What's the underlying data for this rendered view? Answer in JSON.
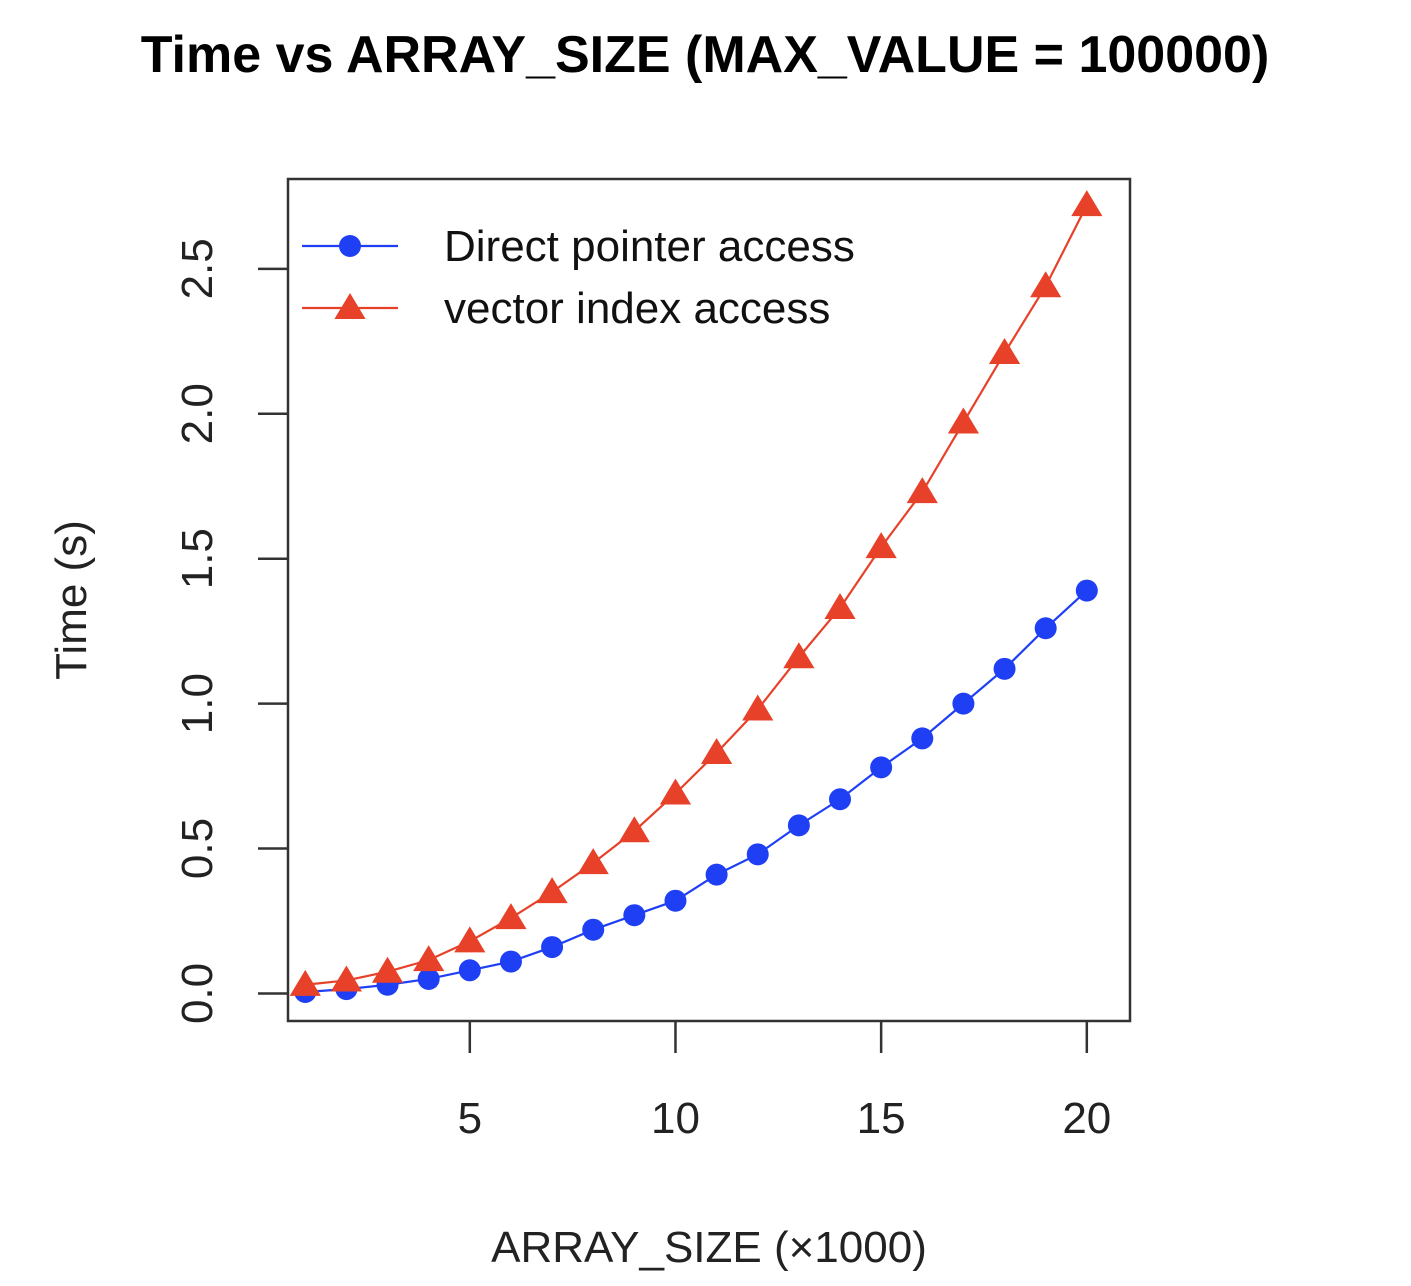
{
  "chart_data": {
    "type": "line",
    "title": "Time vs ARRAY_SIZE (MAX_VALUE = 100000)",
    "xlabel": "ARRAY_SIZE (×1000)",
    "ylabel": "Time (s)",
    "xlim": [
      0.58,
      21.05
    ],
    "ylim": [
      -0.095,
      2.81
    ],
    "x_ticks": [
      5,
      10,
      15,
      20
    ],
    "y_ticks": [
      0.0,
      0.5,
      1.0,
      1.5,
      2.0,
      2.5
    ],
    "x_tick_labels": [
      "5",
      "10",
      "15",
      "20"
    ],
    "y_tick_labels": [
      "0.0",
      "0.5",
      "1.0",
      "1.5",
      "2.0",
      "2.5"
    ],
    "grid": false,
    "legend_position": "top-left",
    "x": [
      1,
      2,
      3,
      4,
      5,
      6,
      7,
      8,
      9,
      10,
      11,
      12,
      13,
      14,
      15,
      16,
      17,
      18,
      19,
      20
    ],
    "series": [
      {
        "name": "Direct pointer access",
        "color": "#1f3ff5",
        "marker": "circle",
        "values": [
          0.005,
          0.015,
          0.03,
          0.05,
          0.08,
          0.11,
          0.16,
          0.22,
          0.27,
          0.32,
          0.41,
          0.48,
          0.58,
          0.67,
          0.78,
          0.88,
          1.0,
          1.12,
          1.26,
          1.39
        ]
      },
      {
        "name": "vector index access",
        "color": "#e8412a",
        "marker": "triangle",
        "values": [
          0.03,
          0.045,
          0.075,
          0.115,
          0.18,
          0.26,
          0.35,
          0.45,
          0.56,
          0.69,
          0.83,
          0.98,
          1.16,
          1.33,
          1.54,
          1.73,
          1.97,
          2.21,
          2.44,
          2.72
        ]
      }
    ]
  }
}
